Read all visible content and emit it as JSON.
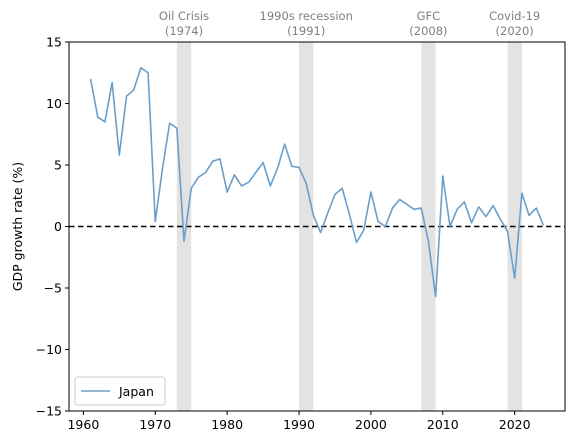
{
  "chart_data": {
    "type": "line",
    "title": "",
    "xlabel": "",
    "ylabel": "GDP growth rate (%)",
    "xlim": [
      1958,
      2027
    ],
    "ylim": [
      -15,
      15
    ],
    "xticks": [
      1960,
      1970,
      1980,
      1990,
      2000,
      2010,
      2020
    ],
    "yticks": [
      -15,
      -10,
      -5,
      0,
      5,
      10,
      15
    ],
    "ytick_labels": [
      "−15",
      "−10",
      "−5",
      "0",
      "5",
      "10",
      "15"
    ],
    "grid": false,
    "reference_line": {
      "y": 0,
      "style": "dashed",
      "color": "#000000"
    },
    "legend": {
      "placement": "lower-left",
      "entries": [
        "Japan"
      ]
    },
    "events": [
      {
        "name": "Oil Crisis",
        "year_label": "(1974)",
        "start": 1973,
        "end": 1975
      },
      {
        "name": "1990s recession",
        "year_label": "(1991)",
        "start": 1990,
        "end": 1992
      },
      {
        "name": "GFC",
        "year_label": "(2008)",
        "start": 2007,
        "end": 2009
      },
      {
        "name": "Covid-19",
        "year_label": "(2020)",
        "start": 2019,
        "end": 2021
      }
    ],
    "series": [
      {
        "name": "Japan",
        "color": "#6a9fcb",
        "x": [
          1961,
          1962,
          1963,
          1964,
          1965,
          1966,
          1967,
          1968,
          1969,
          1970,
          1971,
          1972,
          1973,
          1974,
          1975,
          1976,
          1977,
          1978,
          1979,
          1980,
          1981,
          1982,
          1983,
          1984,
          1985,
          1986,
          1987,
          1988,
          1989,
          1990,
          1991,
          1992,
          1993,
          1994,
          1995,
          1996,
          1997,
          1998,
          1999,
          2000,
          2001,
          2002,
          2003,
          2004,
          2005,
          2006,
          2007,
          2008,
          2009,
          2010,
          2011,
          2012,
          2013,
          2014,
          2015,
          2016,
          2017,
          2018,
          2019,
          2020,
          2021,
          2022,
          2023,
          2024
        ],
        "y": [
          12.0,
          8.9,
          8.5,
          11.7,
          5.8,
          10.6,
          11.1,
          12.9,
          12.5,
          0.4,
          4.7,
          8.4,
          8.0,
          -1.2,
          3.1,
          4.0,
          4.4,
          5.3,
          5.5,
          2.8,
          4.2,
          3.3,
          3.6,
          4.4,
          5.2,
          3.3,
          4.7,
          6.7,
          4.9,
          4.8,
          3.5,
          0.9,
          -0.5,
          1.1,
          2.6,
          3.1,
          1.0,
          -1.3,
          -0.3,
          2.8,
          0.4,
          0.0,
          1.5,
          2.2,
          1.8,
          1.4,
          1.5,
          -1.2,
          -5.7,
          4.1,
          0.0,
          1.4,
          2.0,
          0.3,
          1.6,
          0.8,
          1.7,
          0.6,
          -0.4,
          -4.2,
          2.7,
          0.9,
          1.5,
          0.1
        ]
      }
    ]
  }
}
